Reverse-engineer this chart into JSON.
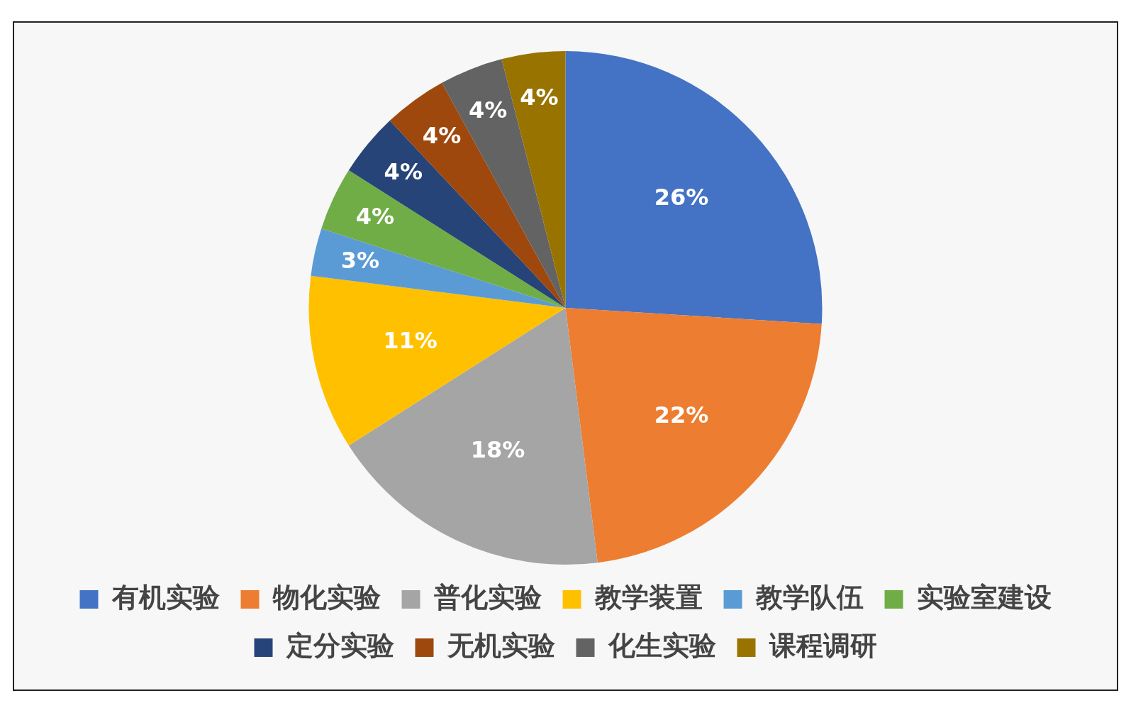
{
  "chart_data": {
    "type": "pie",
    "categories": [
      "有机实验",
      "物化实验",
      "普化实验",
      "教学装置",
      "教学队伍",
      "实验室建设",
      "定分实验",
      "无机实验",
      "化生实验",
      "课程调研"
    ],
    "values": [
      26,
      22,
      18,
      11,
      3,
      4,
      4,
      4,
      4,
      4
    ],
    "colors": [
      "#4472c4",
      "#ed7d31",
      "#a5a5a5",
      "#ffc000",
      "#5b9bd5",
      "#70ad47",
      "#264478",
      "#9e480e",
      "#636363",
      "#997300"
    ],
    "value_labels": [
      "26%",
      "22%",
      "18%",
      "11%",
      "3%",
      "4%",
      "4%",
      "4%",
      "4%",
      "4%"
    ],
    "legend": "bottom"
  }
}
